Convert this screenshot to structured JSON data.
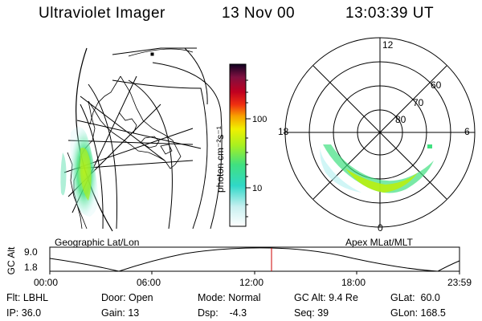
{
  "header": {
    "title": "Ultraviolet Imager",
    "date": "13 Nov 00",
    "time": "13:03:39 UT"
  },
  "panels": {
    "left_label": "Geographic Lat/Lon",
    "right_label": "Apex MLat/MLT"
  },
  "colorbar": {
    "unit_label": "photon cm⁻²s⁻¹",
    "tick_labels": [
      "100",
      "10"
    ]
  },
  "polar": {
    "mlt_labels": [
      "12",
      "18",
      "6",
      "0"
    ],
    "lat_labels": [
      "60",
      "70",
      "80"
    ]
  },
  "timeline": {
    "ylabel": "GC Alt",
    "ytick_labels": [
      "9.0",
      "1.8"
    ],
    "xtick_labels": [
      "00:00",
      "06:00",
      "12:00",
      "18:00",
      "23:59"
    ],
    "cursor_color": "#cc0000"
  },
  "info": {
    "flt": "Flt: LBHL",
    "ip": "IP: 36.0",
    "door": "Door: Open",
    "gain": "Gain: 13",
    "mode": "Mode: Normal",
    "dsp": "Dsp:    -4.3",
    "gcalt": "GC Alt: 9.4 Re",
    "seq": "Seq: 39",
    "glat": "GLat:  60.0",
    "glon": "GLon: 168.5"
  }
}
